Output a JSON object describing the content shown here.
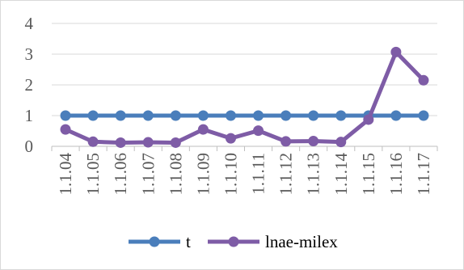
{
  "chart_data": {
    "type": "line",
    "title": "",
    "xlabel": "",
    "ylabel": "",
    "categories": [
      "1.1.04",
      "1.1.05",
      "1.1.06",
      "1.1.07",
      "1.1.08",
      "1.1.09",
      "1.1.10",
      "1.1.11",
      "1.1.12",
      "1.1.13",
      "1.1.14",
      "1.1.15",
      "1.1.16",
      "1.1.17"
    ],
    "ylim": [
      0,
      4
    ],
    "yticks": [
      "0",
      "1",
      "2",
      "3",
      "4"
    ],
    "grid": true,
    "legend_position": "bottom",
    "series": [
      {
        "name": "t",
        "color": "#4a7ebb",
        "values": [
          1,
          1,
          1,
          1,
          1,
          1,
          1,
          1,
          1,
          1,
          1,
          1,
          1,
          1
        ]
      },
      {
        "name": "lnae-milex",
        "color": "#7e5ca6",
        "values": [
          0.55,
          0.15,
          0.12,
          0.13,
          0.12,
          0.55,
          0.26,
          0.51,
          0.16,
          0.17,
          0.14,
          0.87,
          3.07,
          2.15
        ]
      }
    ]
  }
}
